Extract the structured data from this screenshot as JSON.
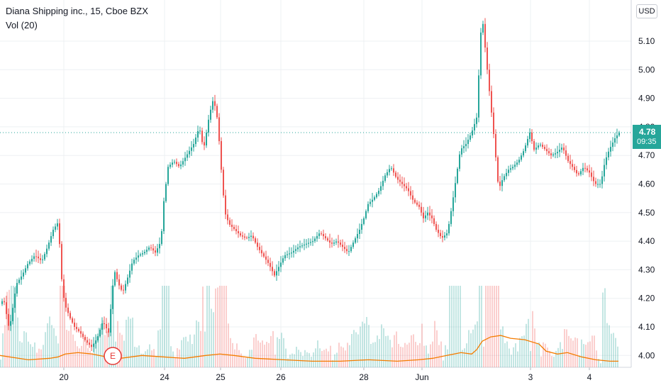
{
  "header": {
    "symbol_title": "Diana Shipping inc., 15, Cboe BZX",
    "volume_label": "Vol (20)"
  },
  "currency_button": "USD",
  "last_price": {
    "price": "4.78",
    "countdown": "09:35"
  },
  "earnings_marker": "E",
  "colors": {
    "up": "#26a69a",
    "down": "#ef5350",
    "volume_ma": "#f57c00",
    "grid": "#eef0f3",
    "axis_text": "#131722"
  },
  "chart_data": {
    "type": "candlestick",
    "title": "Diana Shipping inc., 15, Cboe BZX",
    "y_ticks": [
      "4.00",
      "4.10",
      "4.20",
      "4.30",
      "4.40",
      "4.50",
      "4.60",
      "4.70",
      "4.80",
      "4.90",
      "5.00",
      "5.10"
    ],
    "x_ticks": [
      "20",
      "24",
      "25",
      "26",
      "28",
      "Jun",
      "3",
      "4"
    ],
    "ylim": [
      3.95,
      5.19
    ],
    "last_price": 4.78,
    "price_series": [
      [
        0,
        4.18
      ],
      [
        4,
        4.2
      ],
      [
        12,
        4.09
      ],
      [
        16,
        4.15
      ],
      [
        22,
        4.25
      ],
      [
        30,
        4.28
      ],
      [
        38,
        4.32
      ],
      [
        48,
        4.35
      ],
      [
        58,
        4.33
      ],
      [
        66,
        4.38
      ],
      [
        74,
        4.44
      ],
      [
        82,
        4.47
      ],
      [
        84,
        4.31
      ],
      [
        90,
        4.18
      ],
      [
        98,
        4.13
      ],
      [
        104,
        4.1
      ],
      [
        112,
        4.08
      ],
      [
        120,
        4.05
      ],
      [
        128,
        4.03
      ],
      [
        136,
        4.06
      ],
      [
        144,
        4.12
      ],
      [
        152,
        4.08
      ],
      [
        160,
        4.3
      ],
      [
        166,
        4.25
      ],
      [
        172,
        4.22
      ],
      [
        180,
        4.28
      ],
      [
        186,
        4.33
      ],
      [
        194,
        4.35
      ],
      [
        202,
        4.36
      ],
      [
        210,
        4.38
      ],
      [
        218,
        4.36
      ],
      [
        226,
        4.4
      ],
      [
        230,
        4.54
      ],
      [
        236,
        4.66
      ],
      [
        244,
        4.68
      ],
      [
        252,
        4.66
      ],
      [
        262,
        4.7
      ],
      [
        272,
        4.74
      ],
      [
        280,
        4.8
      ],
      [
        286,
        4.72
      ],
      [
        294,
        4.84
      ],
      [
        300,
        4.9
      ],
      [
        306,
        4.82
      ],
      [
        310,
        4.68
      ],
      [
        316,
        4.5
      ],
      [
        322,
        4.46
      ],
      [
        330,
        4.44
      ],
      [
        338,
        4.42
      ],
      [
        346,
        4.41
      ],
      [
        354,
        4.42
      ],
      [
        362,
        4.38
      ],
      [
        370,
        4.35
      ],
      [
        378,
        4.32
      ],
      [
        386,
        4.28
      ],
      [
        394,
        4.32
      ],
      [
        400,
        4.35
      ],
      [
        410,
        4.36
      ],
      [
        420,
        4.38
      ],
      [
        430,
        4.39
      ],
      [
        440,
        4.4
      ],
      [
        450,
        4.43
      ],
      [
        458,
        4.41
      ],
      [
        466,
        4.39
      ],
      [
        474,
        4.4
      ],
      [
        482,
        4.38
      ],
      [
        490,
        4.36
      ],
      [
        498,
        4.4
      ],
      [
        506,
        4.44
      ],
      [
        512,
        4.48
      ],
      [
        518,
        4.53
      ],
      [
        526,
        4.55
      ],
      [
        534,
        4.58
      ],
      [
        542,
        4.63
      ],
      [
        550,
        4.66
      ],
      [
        558,
        4.62
      ],
      [
        566,
        4.6
      ],
      [
        574,
        4.58
      ],
      [
        582,
        4.54
      ],
      [
        590,
        4.52
      ],
      [
        596,
        4.48
      ],
      [
        602,
        4.5
      ],
      [
        608,
        4.48
      ],
      [
        614,
        4.44
      ],
      [
        622,
        4.41
      ],
      [
        630,
        4.43
      ],
      [
        636,
        4.52
      ],
      [
        642,
        4.62
      ],
      [
        648,
        4.72
      ],
      [
        656,
        4.74
      ],
      [
        664,
        4.78
      ],
      [
        672,
        4.84
      ],
      [
        676,
        5.12
      ],
      [
        680,
        5.16
      ],
      [
        684,
        5.05
      ],
      [
        690,
        4.9
      ],
      [
        696,
        4.75
      ],
      [
        702,
        4.58
      ],
      [
        708,
        4.62
      ],
      [
        716,
        4.65
      ],
      [
        722,
        4.66
      ],
      [
        730,
        4.68
      ],
      [
        738,
        4.72
      ],
      [
        746,
        4.78
      ],
      [
        752,
        4.72
      ],
      [
        760,
        4.74
      ],
      [
        768,
        4.72
      ],
      [
        776,
        4.7
      ],
      [
        784,
        4.71
      ],
      [
        792,
        4.73
      ],
      [
        800,
        4.68
      ],
      [
        806,
        4.66
      ],
      [
        814,
        4.63
      ],
      [
        822,
        4.66
      ],
      [
        830,
        4.64
      ],
      [
        838,
        4.6
      ],
      [
        846,
        4.6
      ],
      [
        852,
        4.68
      ],
      [
        858,
        4.72
      ],
      [
        866,
        4.76
      ],
      [
        872,
        4.78
      ]
    ],
    "volume_ma": [
      [
        0,
        4.0
      ],
      [
        40,
        3.985
      ],
      [
        70,
        3.99
      ],
      [
        82,
        3.995
      ],
      [
        92,
        4.005
      ],
      [
        110,
        4.01
      ],
      [
        130,
        4.005
      ],
      [
        150,
        3.995
      ],
      [
        170,
        3.99
      ],
      [
        200,
        4.0
      ],
      [
        230,
        3.995
      ],
      [
        260,
        3.99
      ],
      [
        290,
        4.0
      ],
      [
        310,
        4.005
      ],
      [
        330,
        4.0
      ],
      [
        360,
        3.99
      ],
      [
        400,
        3.985
      ],
      [
        440,
        3.98
      ],
      [
        480,
        3.98
      ],
      [
        520,
        3.985
      ],
      [
        560,
        3.98
      ],
      [
        590,
        3.985
      ],
      [
        610,
        3.99
      ],
      [
        630,
        4.0
      ],
      [
        650,
        4.01
      ],
      [
        665,
        4.005
      ],
      [
        672,
        4.02
      ],
      [
        680,
        4.05
      ],
      [
        692,
        4.065
      ],
      [
        706,
        4.07
      ],
      [
        720,
        4.06
      ],
      [
        740,
        4.055
      ],
      [
        760,
        4.04
      ],
      [
        770,
        4.015
      ],
      [
        786,
        4.005
      ],
      [
        800,
        4.01
      ],
      [
        820,
        3.995
      ],
      [
        840,
        3.985
      ],
      [
        860,
        3.98
      ],
      [
        872,
        3.98
      ]
    ]
  }
}
